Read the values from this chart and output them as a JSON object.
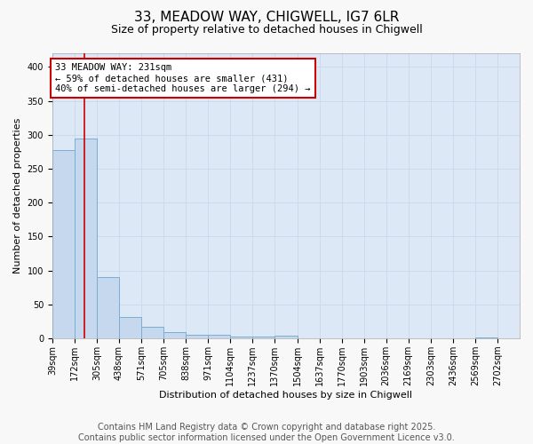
{
  "title_line1": "33, MEADOW WAY, CHIGWELL, IG7 6LR",
  "title_line2": "Size of property relative to detached houses in Chigwell",
  "xlabel": "Distribution of detached houses by size in Chigwell",
  "ylabel": "Number of detached properties",
  "bin_labels": [
    "39sqm",
    "172sqm",
    "305sqm",
    "438sqm",
    "571sqm",
    "705sqm",
    "838sqm",
    "971sqm",
    "1104sqm",
    "1237sqm",
    "1370sqm",
    "1504sqm",
    "1637sqm",
    "1770sqm",
    "1903sqm",
    "2036sqm",
    "2169sqm",
    "2303sqm",
    "2436sqm",
    "2569sqm",
    "2702sqm"
  ],
  "bin_edges": [
    39,
    172,
    305,
    438,
    571,
    705,
    838,
    971,
    1104,
    1237,
    1370,
    1504,
    1637,
    1770,
    1903,
    2036,
    2169,
    2303,
    2436,
    2569,
    2702
  ],
  "bar_heights": [
    278,
    295,
    90,
    32,
    17,
    9,
    6,
    5,
    3,
    3,
    4,
    0,
    0,
    0,
    0,
    0,
    0,
    0,
    0,
    2,
    0
  ],
  "bar_color": "#c5d8ee",
  "bar_edge_color": "#7aaed4",
  "property_size": 231,
  "red_line_color": "#cc0000",
  "annotation_line1": "33 MEADOW WAY: 231sqm",
  "annotation_line2": "← 59% of detached houses are smaller (431)",
  "annotation_line3": "40% of semi-detached houses are larger (294) →",
  "annotation_box_color": "#ffffff",
  "annotation_box_edge_color": "#cc0000",
  "ylim": [
    0,
    420
  ],
  "yticks": [
    0,
    50,
    100,
    150,
    200,
    250,
    300,
    350,
    400
  ],
  "grid_color": "#c8d8ec",
  "plot_bg_color": "#dce8f5",
  "fig_bg_color": "#f8f8f8",
  "footer_text": "Contains HM Land Registry data © Crown copyright and database right 2025.\nContains public sector information licensed under the Open Government Licence v3.0.",
  "footer_fontsize": 7,
  "title1_fontsize": 11,
  "title2_fontsize": 9,
  "axis_label_fontsize": 8,
  "tick_fontsize": 7
}
